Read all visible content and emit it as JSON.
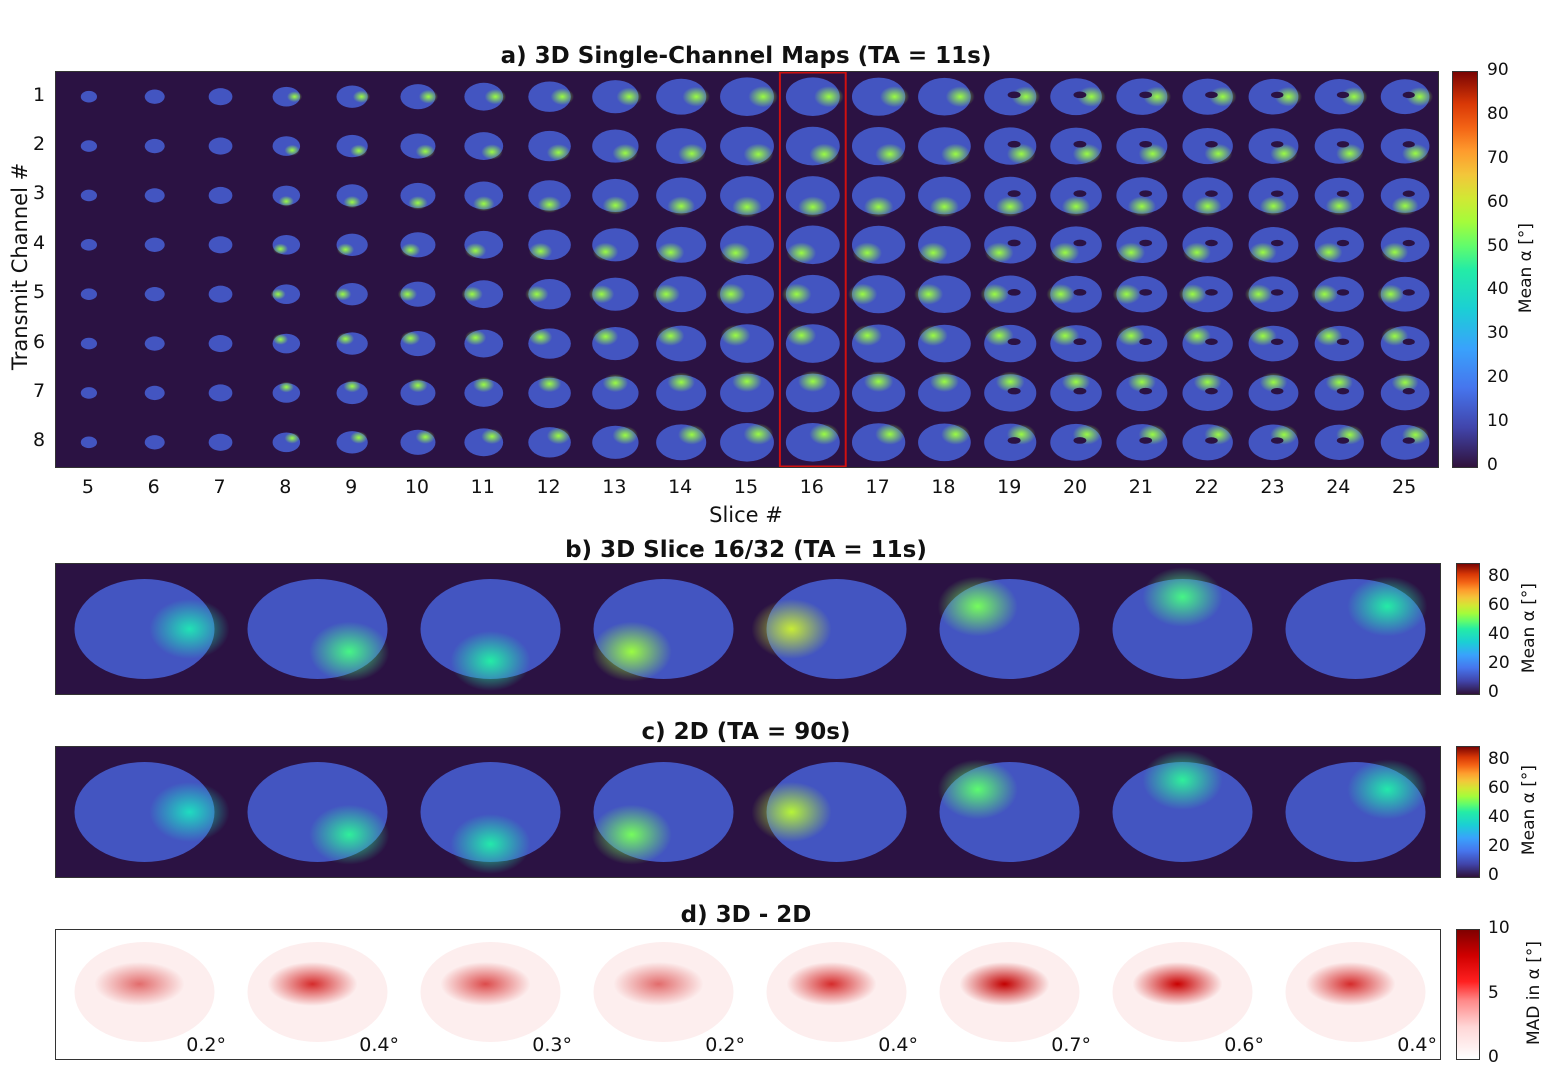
{
  "panels": {
    "a": {
      "title": "a) 3D Single-Channel Maps (TA = 11s)",
      "ylabel": "Transmit Channel #",
      "xlabel": "Slice #",
      "rows": [
        "1",
        "2",
        "3",
        "4",
        "5",
        "6",
        "7",
        "8"
      ],
      "slices": [
        "5",
        "6",
        "7",
        "8",
        "9",
        "10",
        "11",
        "12",
        "13",
        "14",
        "15",
        "16",
        "17",
        "18",
        "19",
        "20",
        "21",
        "22",
        "23",
        "24",
        "25"
      ],
      "highlighted_slice": "16",
      "colorbar": {
        "label": "Mean α [°]",
        "ticks": [
          "90",
          "80",
          "70",
          "60",
          "50",
          "40",
          "30",
          "20",
          "10",
          "0"
        ]
      }
    },
    "b": {
      "title": "b) 3D Slice 16/32 (TA = 11s)",
      "colorbar": {
        "label": "Mean α [°]",
        "ticks": [
          "80",
          "60",
          "40",
          "20",
          "0"
        ]
      }
    },
    "c": {
      "title": "c) 2D (TA = 90s)",
      "colorbar": {
        "label": "Mean α [°]",
        "ticks": [
          "80",
          "60",
          "40",
          "20",
          "0"
        ]
      }
    },
    "d": {
      "title": "d) 3D - 2D",
      "values": [
        "0.2°",
        "0.4°",
        "0.3°",
        "0.2°",
        "0.4°",
        "0.7°",
        "0.6°",
        "0.4°"
      ],
      "colorbar": {
        "label": "MAD in α [°]",
        "ticks": [
          "10",
          "5",
          "0"
        ]
      }
    }
  },
  "colors": {
    "background_map": "#2b1243",
    "highlight_box": "#d01010"
  },
  "maps": {
    "hotspot_angles_deg": [
      0,
      45,
      90,
      135,
      180,
      225,
      270,
      315
    ],
    "panel_b_peak_values": [
      42,
      48,
      45,
      55,
      60,
      52,
      48,
      45
    ],
    "panel_c_peak_values": [
      40,
      46,
      44,
      52,
      58,
      50,
      46,
      44
    ]
  }
}
